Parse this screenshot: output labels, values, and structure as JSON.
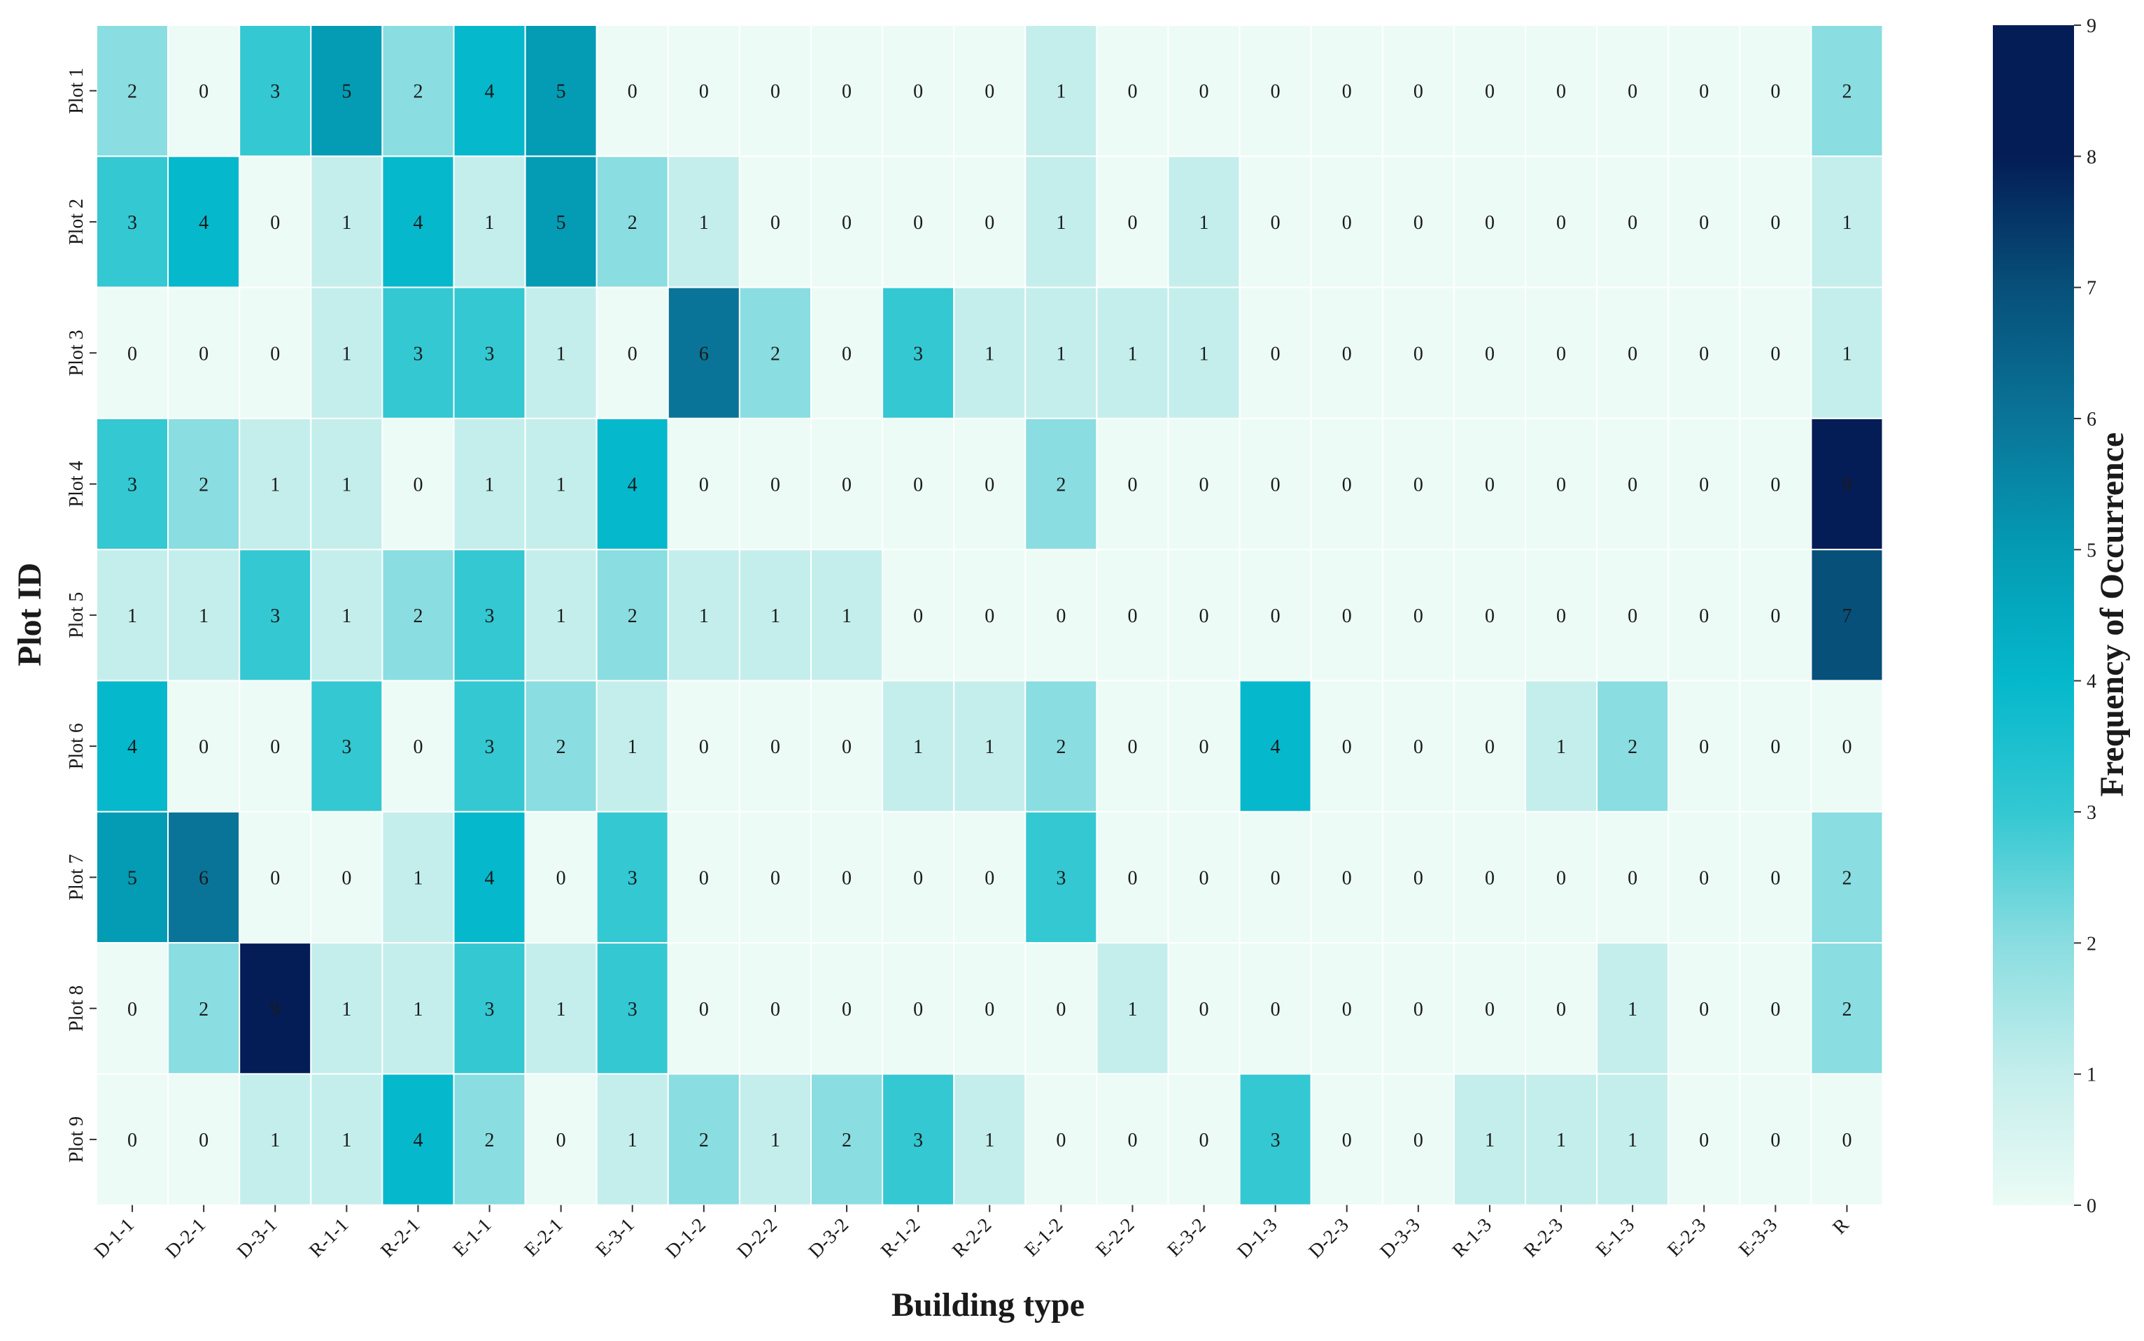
{
  "chart_data": {
    "type": "heatmap",
    "xlabel": "Building type",
    "ylabel": "Plot ID",
    "colorbar_label": "Frequency of Occurrence",
    "x_categories": [
      "D-1-1",
      "D-2-1",
      "D-3-1",
      "R-1-1",
      "R-2-1",
      "E-1-1",
      "E-2-1",
      "E-3-1",
      "D-1-2",
      "D-2-2",
      "D-3-2",
      "R-1-2",
      "R-2-2",
      "E-1-2",
      "E-2-2",
      "E-3-2",
      "D-1-3",
      "D-2-3",
      "D-3-3",
      "R-1-3",
      "R-2-3",
      "E-1-3",
      "E-2-3",
      "E-3-3",
      "R"
    ],
    "y_categories": [
      "Plot 1",
      "Plot 2",
      "Plot 3",
      "Plot 4",
      "Plot 5",
      "Plot 6",
      "Plot 7",
      "Plot 8",
      "Plot 9"
    ],
    "values": [
      [
        2,
        0,
        3,
        5,
        2,
        4,
        5,
        0,
        0,
        0,
        0,
        0,
        0,
        1,
        0,
        0,
        0,
        0,
        0,
        0,
        0,
        0,
        0,
        0,
        2
      ],
      [
        3,
        4,
        0,
        1,
        4,
        1,
        5,
        2,
        1,
        0,
        0,
        0,
        0,
        1,
        0,
        1,
        0,
        0,
        0,
        0,
        0,
        0,
        0,
        0,
        1
      ],
      [
        0,
        0,
        0,
        1,
        3,
        3,
        1,
        0,
        6,
        2,
        0,
        3,
        1,
        1,
        1,
        1,
        0,
        0,
        0,
        0,
        0,
        0,
        0,
        0,
        1
      ],
      [
        3,
        2,
        1,
        1,
        0,
        1,
        1,
        4,
        0,
        0,
        0,
        0,
        0,
        2,
        0,
        0,
        0,
        0,
        0,
        0,
        0,
        0,
        0,
        0,
        9
      ],
      [
        1,
        1,
        3,
        1,
        2,
        3,
        1,
        2,
        1,
        1,
        1,
        0,
        0,
        0,
        0,
        0,
        0,
        0,
        0,
        0,
        0,
        0,
        0,
        0,
        7
      ],
      [
        4,
        0,
        0,
        3,
        0,
        3,
        2,
        1,
        0,
        0,
        0,
        1,
        1,
        2,
        0,
        0,
        4,
        0,
        0,
        0,
        1,
        2,
        0,
        0,
        0
      ],
      [
        5,
        6,
        0,
        0,
        1,
        4,
        0,
        3,
        0,
        0,
        0,
        0,
        0,
        3,
        0,
        0,
        0,
        0,
        0,
        0,
        0,
        0,
        0,
        0,
        2
      ],
      [
        0,
        2,
        9,
        1,
        1,
        3,
        1,
        3,
        0,
        0,
        0,
        0,
        0,
        0,
        1,
        0,
        0,
        0,
        0,
        0,
        0,
        1,
        0,
        0,
        2
      ],
      [
        0,
        0,
        1,
        1,
        4,
        2,
        0,
        1,
        2,
        1,
        2,
        3,
        1,
        0,
        0,
        0,
        3,
        0,
        0,
        1,
        1,
        1,
        0,
        0,
        0
      ]
    ],
    "colorbar_range": [
      0,
      9
    ],
    "colorbar_ticks": [
      "0",
      "1",
      "2",
      "3",
      "4",
      "5",
      "6",
      "7",
      "8",
      "9"
    ],
    "colormap_stops": [
      "#ecfbf5",
      "#c4eeec",
      "#8adde0",
      "#33c8d2",
      "#05b8cc",
      "#049bb4",
      "#0a7498",
      "#07507a",
      "#041d56",
      "#041d56"
    ],
    "grid_color": "#ffffff"
  }
}
